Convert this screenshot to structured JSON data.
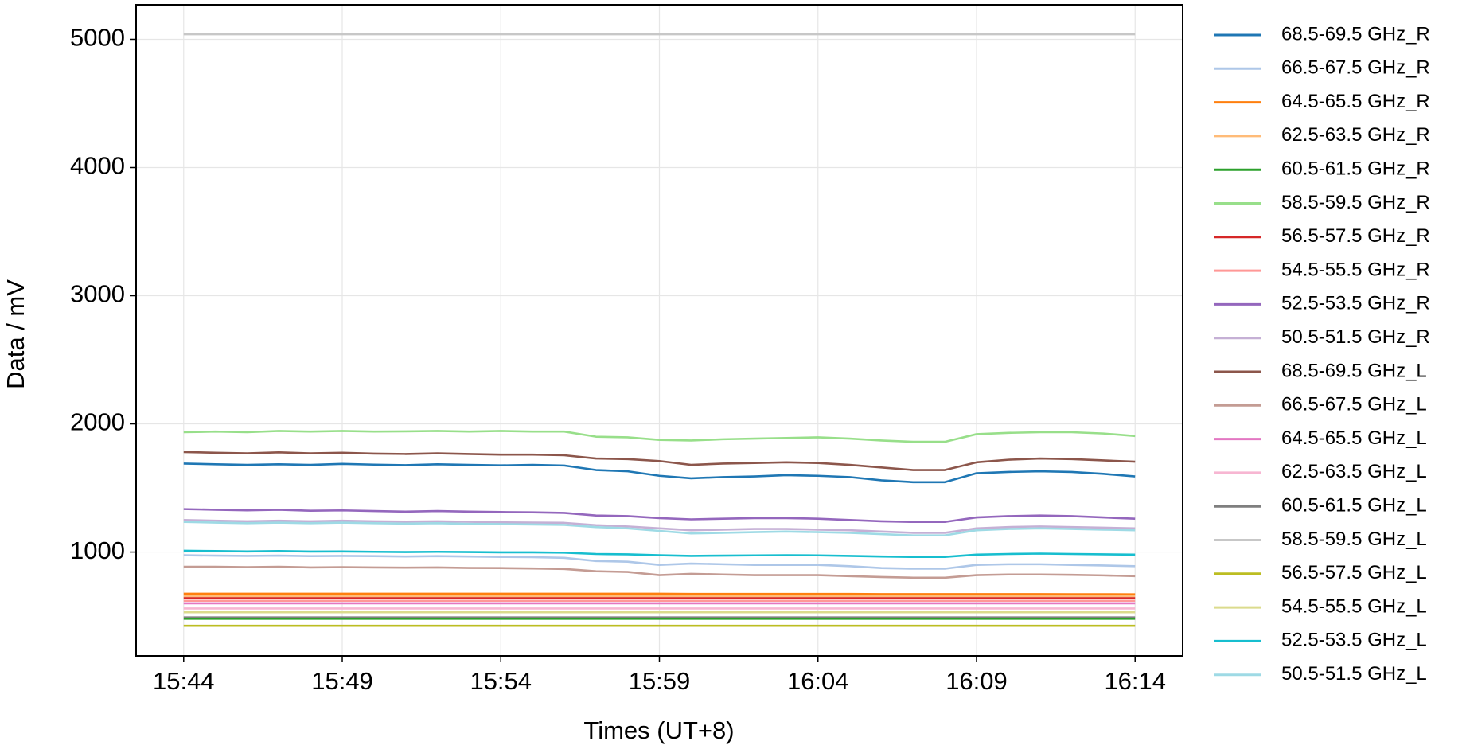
{
  "chart_data": {
    "type": "line",
    "xlabel": "Times (UT+8)",
    "ylabel": "Data / mV",
    "x": [
      "15:44",
      "15:45",
      "15:46",
      "15:47",
      "15:48",
      "15:49",
      "15:50",
      "15:51",
      "15:52",
      "15:53",
      "15:54",
      "15:55",
      "15:56",
      "15:57",
      "15:58",
      "15:59",
      "16:00",
      "16:01",
      "16:02",
      "16:03",
      "16:04",
      "16:05",
      "16:06",
      "16:07",
      "16:08",
      "16:09",
      "16:10",
      "16:11",
      "16:12",
      "16:13",
      "16:14"
    ],
    "xticks": [
      "15:44",
      "15:49",
      "15:54",
      "15:59",
      "16:04",
      "16:09",
      "16:14"
    ],
    "ylim": [
      190,
      5270
    ],
    "yticks": [
      1000,
      2000,
      3000,
      4000,
      5000
    ],
    "grid": true,
    "legend": "outside-right",
    "series": [
      {
        "name": "68.5-69.5 GHz_R",
        "color": "#1f77b4",
        "values": [
          1690,
          1685,
          1680,
          1685,
          1680,
          1688,
          1682,
          1678,
          1685,
          1680,
          1676,
          1680,
          1675,
          1640,
          1630,
          1595,
          1575,
          1585,
          1590,
          1600,
          1595,
          1585,
          1560,
          1545,
          1545,
          1615,
          1625,
          1630,
          1625,
          1610,
          1590
        ]
      },
      {
        "name": "66.5-67.5 GHz_R",
        "color": "#aec7e8",
        "values": [
          975,
          972,
          970,
          972,
          968,
          970,
          968,
          965,
          968,
          965,
          962,
          960,
          955,
          930,
          925,
          900,
          910,
          905,
          900,
          900,
          900,
          890,
          875,
          870,
          870,
          900,
          905,
          905,
          900,
          895,
          890
        ]
      },
      {
        "name": "64.5-65.5 GHz_R",
        "color": "#ff7f0e",
        "values": [
          675,
          675,
          675,
          675,
          675,
          675,
          675,
          675,
          675,
          675,
          675,
          675,
          675,
          675,
          675,
          675,
          673,
          673,
          673,
          673,
          673,
          673,
          672,
          672,
          672,
          672,
          672,
          672,
          671,
          671,
          670
        ]
      },
      {
        "name": "62.5-63.5 GHz_R",
        "color": "#ffbb78",
        "values": [
          655,
          655,
          655,
          655,
          655,
          655,
          655,
          655,
          655,
          655,
          655,
          655,
          655,
          655,
          655,
          655,
          655,
          655,
          655,
          655,
          655,
          655,
          655,
          655,
          655,
          655,
          655,
          655,
          655,
          655,
          655
        ]
      },
      {
        "name": "60.5-61.5 GHz_R",
        "color": "#2ca02c",
        "values": [
          480,
          480,
          480,
          480,
          480,
          480,
          480,
          480,
          480,
          480,
          480,
          480,
          480,
          480,
          480,
          480,
          480,
          480,
          480,
          480,
          480,
          480,
          480,
          480,
          480,
          480,
          480,
          480,
          480,
          480,
          480
        ]
      },
      {
        "name": "58.5-59.5 GHz_R",
        "color": "#98df8a",
        "values": [
          1935,
          1940,
          1935,
          1945,
          1940,
          1945,
          1940,
          1942,
          1945,
          1940,
          1945,
          1940,
          1940,
          1900,
          1895,
          1875,
          1870,
          1880,
          1885,
          1890,
          1895,
          1885,
          1870,
          1860,
          1860,
          1920,
          1930,
          1935,
          1935,
          1925,
          1905
        ]
      },
      {
        "name": "56.5-57.5 GHz_R",
        "color": "#d62728",
        "values": [
          640,
          640,
          640,
          640,
          640,
          640,
          640,
          640,
          640,
          640,
          640,
          640,
          640,
          640,
          640,
          640,
          640,
          640,
          640,
          640,
          640,
          640,
          640,
          640,
          640,
          640,
          640,
          640,
          640,
          640,
          640
        ]
      },
      {
        "name": "54.5-55.5 GHz_R",
        "color": "#ff9896",
        "values": [
          620,
          620,
          620,
          620,
          620,
          620,
          620,
          620,
          620,
          620,
          620,
          620,
          620,
          620,
          620,
          620,
          620,
          620,
          620,
          620,
          620,
          620,
          620,
          620,
          620,
          620,
          620,
          620,
          620,
          620,
          620
        ]
      },
      {
        "name": "52.5-53.5 GHz_R",
        "color": "#9467bd",
        "values": [
          1335,
          1330,
          1325,
          1330,
          1322,
          1325,
          1320,
          1315,
          1320,
          1315,
          1312,
          1310,
          1305,
          1285,
          1280,
          1265,
          1255,
          1260,
          1265,
          1265,
          1260,
          1250,
          1240,
          1235,
          1235,
          1270,
          1280,
          1285,
          1280,
          1270,
          1260
        ]
      },
      {
        "name": "50.5-51.5 GHz_R",
        "color": "#c5b0d5",
        "values": [
          1250,
          1245,
          1240,
          1245,
          1240,
          1245,
          1240,
          1238,
          1240,
          1236,
          1232,
          1230,
          1228,
          1210,
          1200,
          1185,
          1170,
          1175,
          1180,
          1180,
          1175,
          1170,
          1160,
          1150,
          1150,
          1185,
          1195,
          1200,
          1195,
          1190,
          1185
        ]
      },
      {
        "name": "68.5-69.5 GHz_L",
        "color": "#8c564b",
        "values": [
          1780,
          1775,
          1770,
          1778,
          1770,
          1775,
          1768,
          1765,
          1770,
          1765,
          1760,
          1760,
          1755,
          1730,
          1725,
          1710,
          1680,
          1690,
          1695,
          1700,
          1695,
          1680,
          1660,
          1640,
          1640,
          1700,
          1720,
          1730,
          1725,
          1715,
          1705
        ]
      },
      {
        "name": "66.5-67.5 GHz_L",
        "color": "#c49c94",
        "values": [
          885,
          885,
          882,
          885,
          880,
          882,
          880,
          878,
          880,
          876,
          875,
          872,
          868,
          850,
          845,
          820,
          830,
          825,
          820,
          820,
          820,
          812,
          805,
          800,
          800,
          820,
          825,
          825,
          822,
          818,
          812
        ]
      },
      {
        "name": "64.5-65.5 GHz_L",
        "color": "#e377c2",
        "values": [
          600,
          600,
          600,
          600,
          600,
          600,
          600,
          600,
          600,
          600,
          600,
          600,
          600,
          600,
          600,
          600,
          600,
          600,
          600,
          600,
          600,
          600,
          600,
          600,
          600,
          600,
          600,
          600,
          600,
          600,
          600
        ]
      },
      {
        "name": "62.5-63.5 GHz_L",
        "color": "#f7b6d2",
        "values": [
          560,
          560,
          560,
          560,
          560,
          560,
          560,
          560,
          560,
          560,
          560,
          560,
          560,
          560,
          560,
          560,
          560,
          560,
          560,
          560,
          560,
          560,
          560,
          560,
          560,
          560,
          560,
          560,
          560,
          560,
          560
        ]
      },
      {
        "name": "60.5-61.5 GHz_L",
        "color": "#7f7f7f",
        "values": [
          490,
          490,
          490,
          490,
          490,
          490,
          490,
          490,
          490,
          490,
          490,
          490,
          490,
          490,
          490,
          490,
          490,
          490,
          490,
          490,
          490,
          490,
          490,
          490,
          490,
          490,
          490,
          490,
          490,
          490,
          490
        ]
      },
      {
        "name": "58.5-59.5 GHz_L",
        "color": "#c7c7c7",
        "values": [
          5040,
          5040,
          5040,
          5040,
          5040,
          5040,
          5040,
          5040,
          5040,
          5040,
          5040,
          5040,
          5040,
          5040,
          5040,
          5040,
          5040,
          5040,
          5040,
          5040,
          5040,
          5040,
          5040,
          5040,
          5040,
          5040,
          5040,
          5040,
          5040,
          5040,
          5040
        ]
      },
      {
        "name": "56.5-57.5 GHz_L",
        "color": "#bcbd22",
        "values": [
          425,
          425,
          425,
          425,
          425,
          425,
          425,
          425,
          425,
          425,
          425,
          425,
          425,
          425,
          425,
          425,
          425,
          425,
          425,
          425,
          425,
          425,
          425,
          425,
          425,
          425,
          425,
          425,
          425,
          425,
          425
        ]
      },
      {
        "name": "54.5-55.5 GHz_L",
        "color": "#dbdb8d",
        "values": [
          530,
          530,
          530,
          530,
          530,
          530,
          530,
          530,
          530,
          530,
          530,
          530,
          530,
          530,
          530,
          530,
          530,
          530,
          530,
          530,
          530,
          530,
          530,
          530,
          530,
          530,
          530,
          530,
          530,
          530,
          530
        ]
      },
      {
        "name": "52.5-53.5 GHz_L",
        "color": "#17becf",
        "values": [
          1010,
          1008,
          1005,
          1008,
          1004,
          1005,
          1002,
          1000,
          1002,
          1000,
          998,
          998,
          995,
          985,
          982,
          975,
          970,
          972,
          974,
          975,
          974,
          970,
          965,
          962,
          962,
          980,
          985,
          988,
          985,
          982,
          980
        ]
      },
      {
        "name": "50.5-51.5 GHz_L",
        "color": "#9edae5",
        "values": [
          1235,
          1230,
          1225,
          1230,
          1225,
          1230,
          1225,
          1222,
          1225,
          1220,
          1218,
          1215,
          1212,
          1195,
          1185,
          1165,
          1145,
          1150,
          1155,
          1160,
          1155,
          1150,
          1140,
          1130,
          1130,
          1170,
          1180,
          1185,
          1180,
          1175,
          1170
        ]
      }
    ]
  }
}
